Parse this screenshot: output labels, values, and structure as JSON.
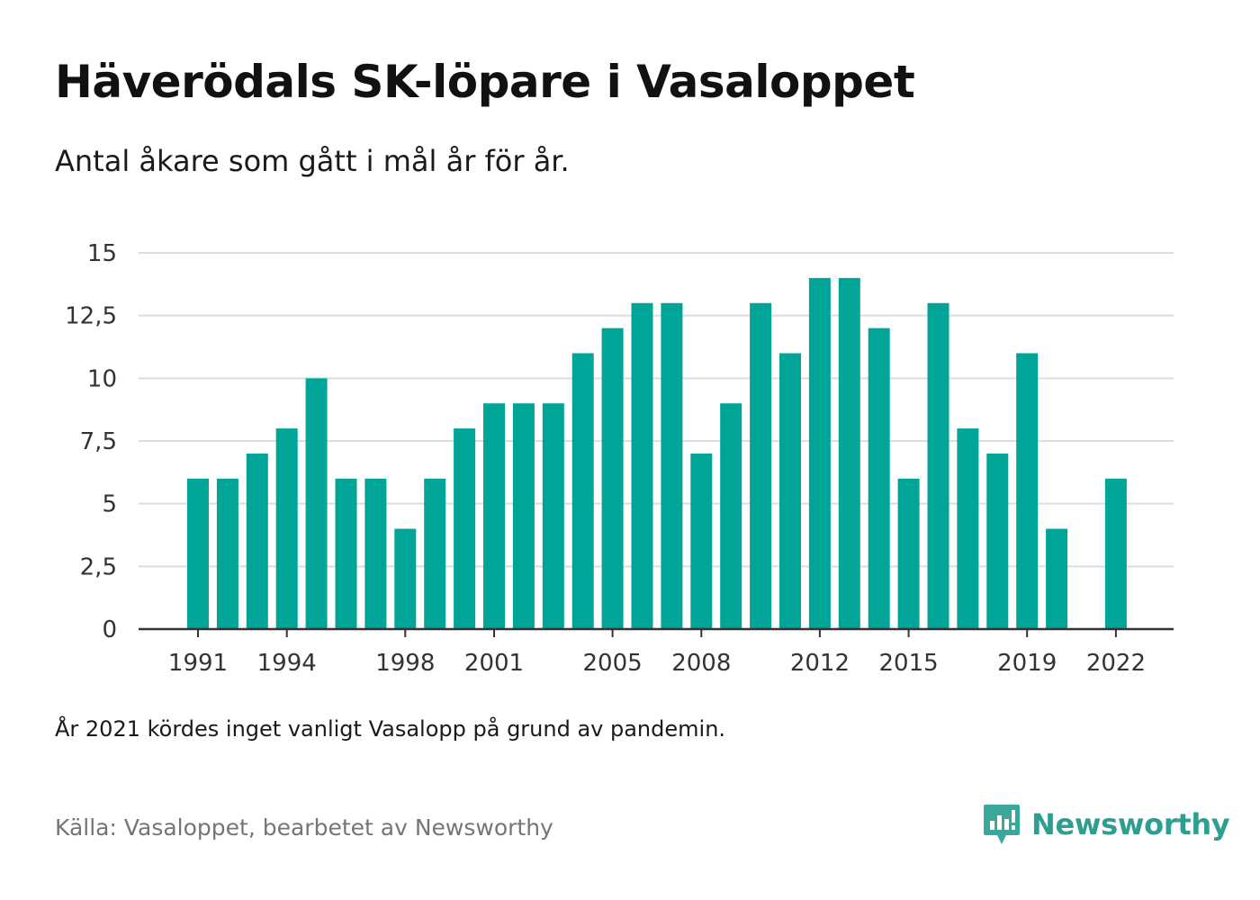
{
  "title": "Häverödals SK-löpare i Vasaloppet",
  "subtitle": "Antal åkare som gått i mål år för år.",
  "note": "År 2021 kördes inget vanligt Vasalopp på grund av pandemin.",
  "source": "Källa: Vasaloppet, bearbetet av Newsworthy",
  "brand": {
    "name": "Newsworthy",
    "icon": "newsworthy-logo-icon",
    "color": "#2e9e91"
  },
  "colors": {
    "bar": "#00a597",
    "grid": "#dddddd",
    "axis": "#333333"
  },
  "chart_data": {
    "type": "bar",
    "categories": [
      1991,
      1992,
      1993,
      1994,
      1995,
      1996,
      1997,
      1998,
      1999,
      2000,
      2001,
      2002,
      2003,
      2004,
      2005,
      2006,
      2007,
      2008,
      2009,
      2010,
      2011,
      2012,
      2013,
      2014,
      2015,
      2016,
      2017,
      2018,
      2019,
      2020,
      2021,
      2022
    ],
    "values": [
      6,
      6,
      7,
      8,
      10,
      6,
      6,
      4,
      6,
      8,
      9,
      9,
      9,
      11,
      12,
      13,
      13,
      7,
      9,
      13,
      11,
      14,
      14,
      12,
      6,
      13,
      8,
      7,
      11,
      4,
      null,
      6
    ],
    "x_tick_labels": [
      "1991",
      "1994",
      "1998",
      "2001",
      "2005",
      "2008",
      "2012",
      "2015",
      "2019",
      "2022"
    ],
    "y_ticks": [
      0,
      2.5,
      5,
      7.5,
      10,
      12.5,
      15
    ],
    "y_tick_labels": [
      "0",
      "2,5",
      "5",
      "7,5",
      "10",
      "12,5",
      "15"
    ],
    "ylim": [
      0,
      15
    ],
    "grid": true,
    "legend": "none"
  }
}
